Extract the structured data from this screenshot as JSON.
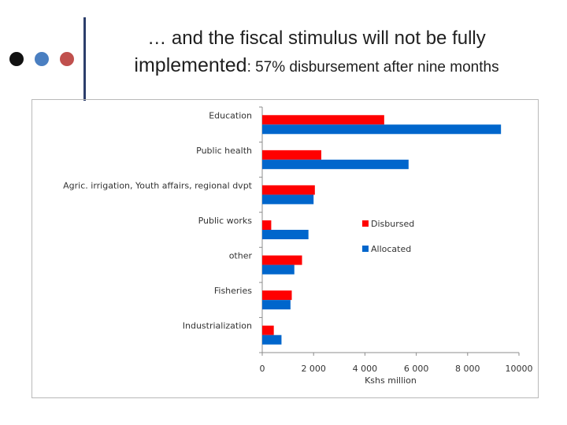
{
  "slide": {
    "title_line1": "… and the fiscal stimulus will not be fully",
    "title_line2_main": "implemented",
    "title_line2_rest": ": 57% disbursement after nine months"
  },
  "colors": {
    "dot1": "#111111",
    "dot2": "#4a7fc1",
    "dot3": "#c0504d",
    "disbursed": "#ff0000",
    "allocated": "#0066cc"
  },
  "chart_data": {
    "type": "bar",
    "orientation": "horizontal",
    "categories": [
      "Education",
      "Public health",
      "Agric. irrigation, Youth affairs, regional dvpt",
      "Public works",
      "other",
      "Fisheries",
      "Industrialization"
    ],
    "series": [
      {
        "name": "Disbursed",
        "values": [
          4750,
          2300,
          2050,
          350,
          1550,
          1150,
          450
        ]
      },
      {
        "name": "Allocated",
        "values": [
          9300,
          5700,
          2000,
          1800,
          1250,
          1100,
          750
        ]
      }
    ],
    "xlabel": "Kshs million",
    "ylabel": "",
    "xlim": [
      0,
      10000
    ],
    "xticks": [
      "0",
      "2 000",
      "4 000",
      "6 000",
      "8 000",
      "10000"
    ],
    "legend_position": "right",
    "grid": false
  }
}
